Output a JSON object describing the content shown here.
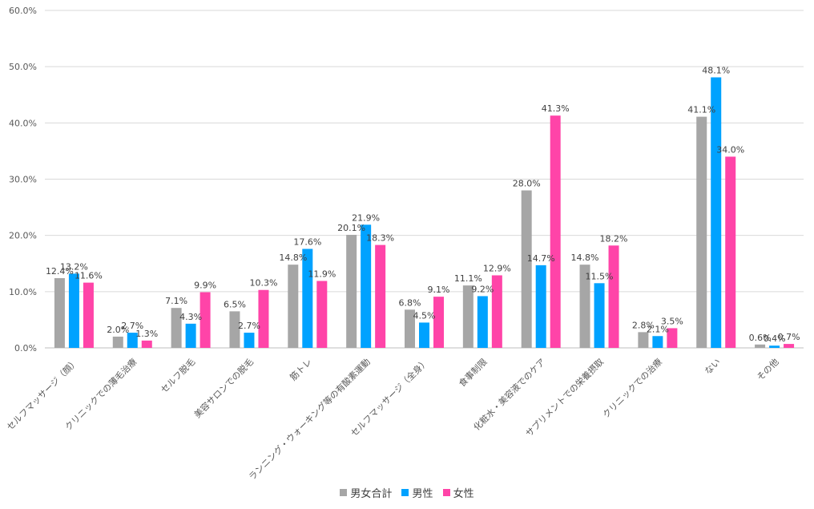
{
  "chart_data": {
    "type": "bar",
    "categories": [
      "セルフマッサージ（顔）",
      "クリニックでの薄毛治療",
      "セルフ脱毛",
      "美容サロンでの脱毛",
      "筋トレ",
      "ランニング・ウォーキング等の有酸素運動",
      "セルフマッサージ（全身）",
      "食事制限",
      "化粧水・美容液でのケア",
      "サプリメントでの栄養摂取",
      "クリニックでの治療",
      "ない",
      "その他"
    ],
    "series": [
      {
        "name": "男女合計",
        "color": "#a6a6a6",
        "values": [
          12.4,
          2.0,
          7.1,
          6.5,
          14.8,
          20.1,
          6.8,
          11.1,
          28.0,
          14.8,
          2.8,
          41.1,
          0.6
        ]
      },
      {
        "name": "男性",
        "color": "#00a2ff",
        "values": [
          13.2,
          2.7,
          4.3,
          2.7,
          17.6,
          21.9,
          4.5,
          9.2,
          14.7,
          11.5,
          2.1,
          48.1,
          0.4
        ]
      },
      {
        "name": "女性",
        "color": "#ff44a8",
        "values": [
          11.6,
          1.3,
          9.9,
          10.3,
          11.9,
          18.3,
          9.1,
          12.9,
          41.3,
          18.2,
          3.5,
          34.0,
          0.7
        ]
      }
    ],
    "y_ticks": [
      "0.0%",
      "10.0%",
      "20.0%",
      "30.0%",
      "40.0%",
      "50.0%",
      "60.0%"
    ],
    "ylim": [
      0,
      60
    ],
    "value_suffix": "%",
    "grid": true,
    "legend_position": "bottom",
    "title": "",
    "xlabel": "",
    "ylabel": ""
  }
}
